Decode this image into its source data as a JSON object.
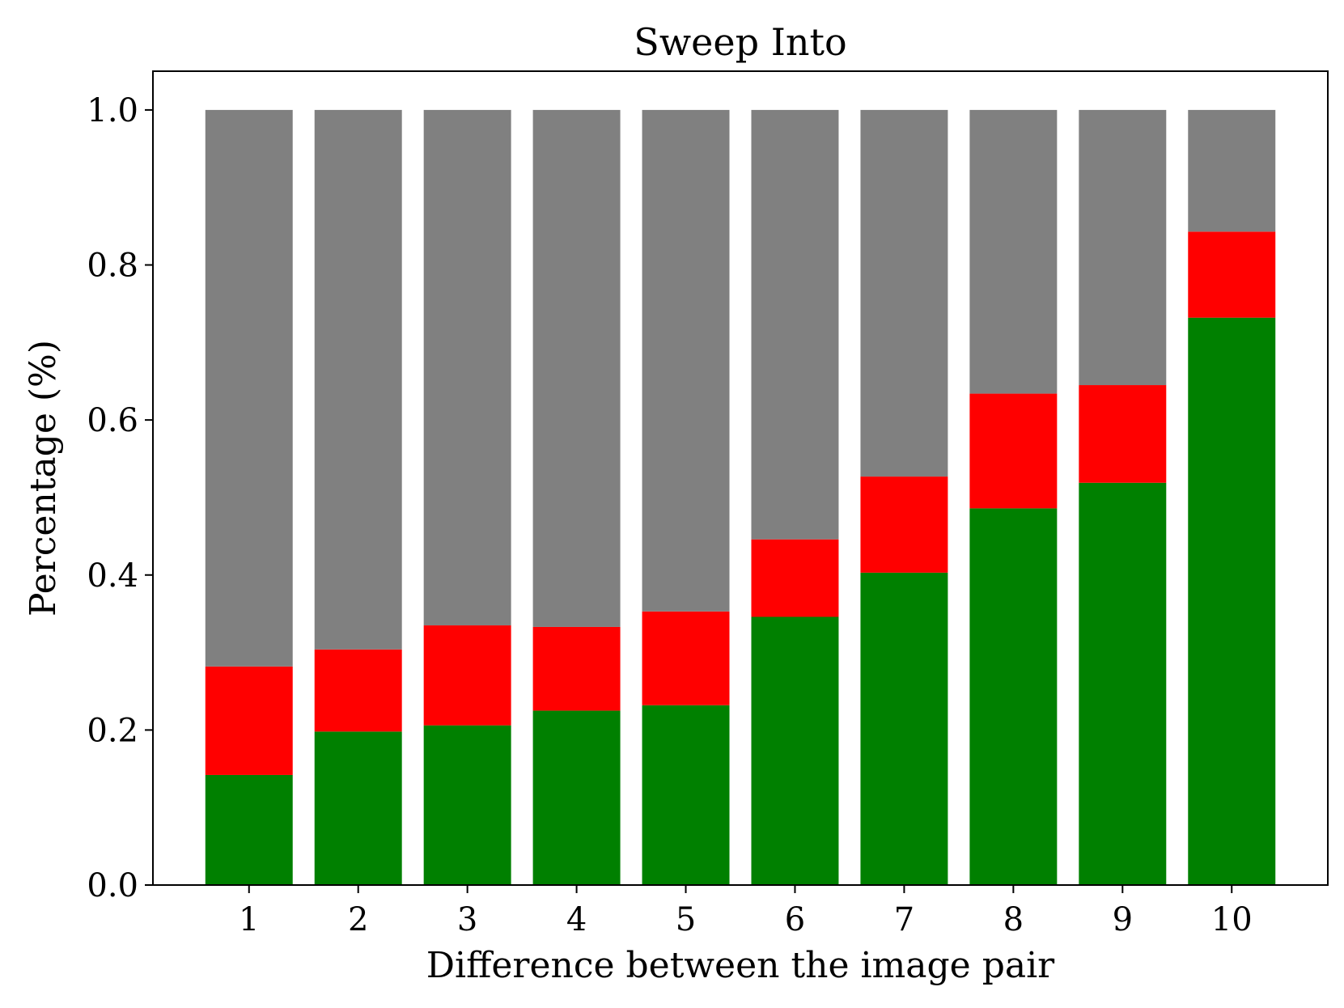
{
  "chart_data": {
    "type": "bar",
    "stacked": true,
    "title": "Sweep Into",
    "xlabel": "Difference between the image pair",
    "ylabel": "Percentage (%)",
    "ylim": [
      0,
      1.05
    ],
    "yticks": [
      "0.0",
      "0.2",
      "0.4",
      "0.6",
      "0.8",
      "1.0"
    ],
    "categories": [
      "1",
      "2",
      "3",
      "4",
      "5",
      "6",
      "7",
      "8",
      "9",
      "10"
    ],
    "grid": false,
    "series": [
      {
        "color": "#008000",
        "values": [
          0.142,
          0.198,
          0.206,
          0.225,
          0.232,
          0.346,
          0.403,
          0.486,
          0.519,
          0.732
        ]
      },
      {
        "color": "#ff0000",
        "values": [
          0.14,
          0.106,
          0.129,
          0.108,
          0.121,
          0.1,
          0.124,
          0.148,
          0.126,
          0.111
        ]
      },
      {
        "color": "#808080",
        "values": [
          0.718,
          0.696,
          0.665,
          0.667,
          0.647,
          0.554,
          0.473,
          0.366,
          0.355,
          0.157
        ]
      }
    ]
  }
}
